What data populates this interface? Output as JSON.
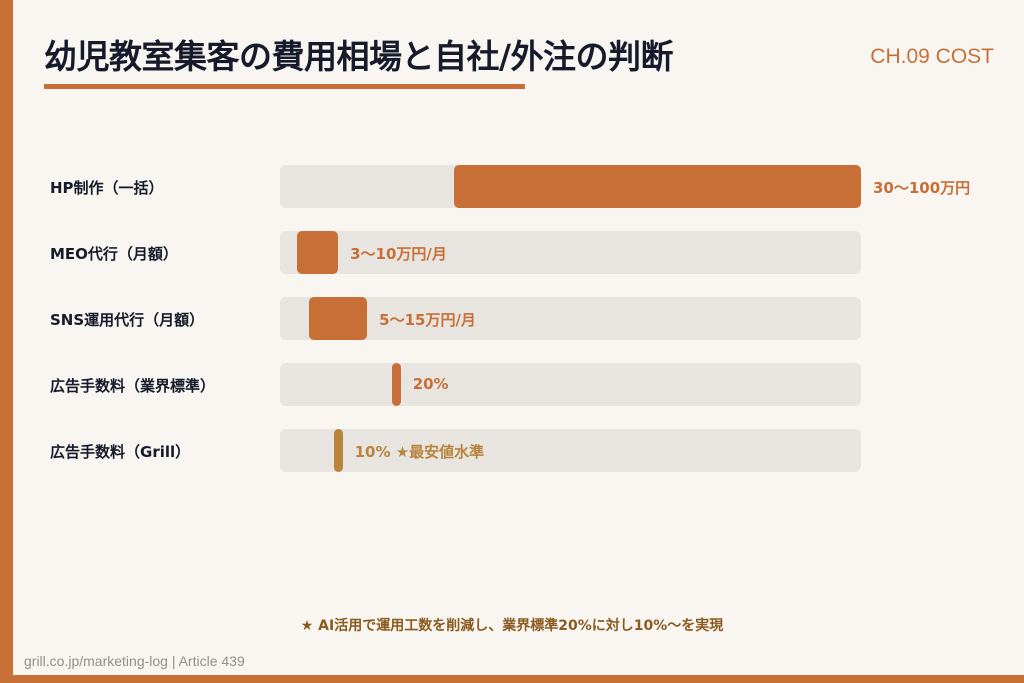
{
  "header": {
    "title": "幼児教室集客の費用相場と自社/外注の判断",
    "chapter": "CH.09 COST"
  },
  "colors": {
    "accent": "#c76f37",
    "highlight": "#b8843d",
    "track": "#e8e5e1",
    "text_dark": "#161b2b"
  },
  "chart_data": {
    "type": "bar",
    "orientation": "horizontal",
    "title": "",
    "xlabel": "",
    "ylabel": "",
    "categories": [
      "HP制作（一括）",
      "MEO代行（月額）",
      "SNS運用代行（月額）",
      "広告手数料（業界標準）",
      "広告手数料（Grill）"
    ],
    "bars": [
      {
        "label": "HP制作（一括）",
        "start": 30,
        "end": 100,
        "scale_max": 100,
        "value_label": "30〜100万円",
        "color": "#c76f37"
      },
      {
        "label": "MEO代行（月額）",
        "start": 3,
        "end": 10,
        "scale_max": 100,
        "value_label": "3〜10万円/月",
        "color": "#c76f37"
      },
      {
        "label": "SNS運用代行（月額）",
        "start": 5,
        "end": 15,
        "scale_max": 100,
        "value_label": "5〜15万円/月",
        "color": "#c76f37"
      },
      {
        "label": "広告手数料（業界標準）",
        "start": 20,
        "end": 20,
        "scale_max": 100,
        "value_label": "20%",
        "color": "#c76f37"
      },
      {
        "label": "広告手数料（Grill）",
        "start": 10,
        "end": 10,
        "scale_max": 100,
        "value_label": "10% ★最安値水準",
        "color": "#b8843d"
      }
    ],
    "grid": false,
    "legend": "none"
  },
  "footnote": "★ AI活用で運用工数を削減し、業界標準20%に対し10%〜を実現",
  "footer": "grill.co.jp/marketing-log | Article 439"
}
